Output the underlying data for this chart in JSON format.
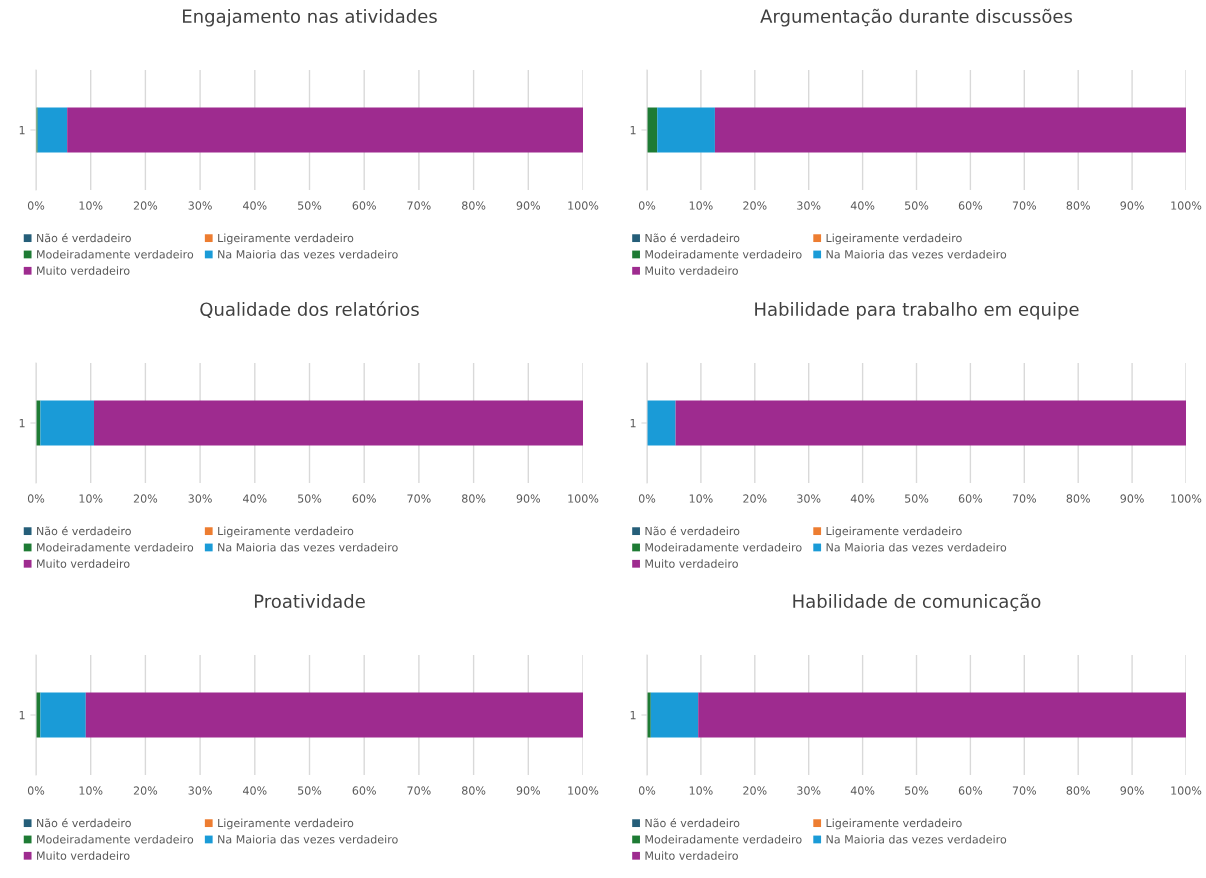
{
  "chart_data": [
    {
      "type": "bar",
      "title": "Engajamento nas atividades",
      "orientation": "horizontal",
      "stacked": true,
      "categories": [
        "1"
      ],
      "xlim": [
        0,
        100
      ],
      "xticks": [
        {
          "value": 0,
          "label": "0%"
        },
        {
          "value": 10,
          "label": "10%"
        },
        {
          "value": 20,
          "label": "20%"
        },
        {
          "value": 30,
          "label": "30%"
        },
        {
          "value": 40,
          "label": "40%"
        },
        {
          "value": 50,
          "label": "50%"
        },
        {
          "value": 60,
          "label": "60%"
        },
        {
          "value": 70,
          "label": "70%"
        },
        {
          "value": 80,
          "label": "80%"
        },
        {
          "value": 90,
          "label": "90%"
        },
        {
          "value": 100,
          "label": "100%"
        }
      ],
      "grid": "x",
      "legend": "bottom",
      "series": [
        {
          "name": "Não é verdadeiro",
          "color": "#255e79",
          "values": [
            0
          ]
        },
        {
          "name": "Ligeiramente verdadeiro",
          "color": "#ed7d31",
          "values": [
            0
          ]
        },
        {
          "name": "Modeiradamente verdadeiro",
          "color": "#1e7b34",
          "values": [
            0.3
          ]
        },
        {
          "name": "Na Maioria das vezes verdadeiro",
          "color": "#1a9bd7",
          "values": [
            5.4
          ]
        },
        {
          "name": "Muito verdadeiro",
          "color": "#9e2b8f",
          "values": [
            94.3
          ]
        }
      ]
    },
    {
      "type": "bar",
      "title": "Argumentação durante discussões",
      "orientation": "horizontal",
      "stacked": true,
      "categories": [
        "1"
      ],
      "xlim": [
        0,
        100
      ],
      "xticks": [
        {
          "value": 0,
          "label": "0%"
        },
        {
          "value": 10,
          "label": "10%"
        },
        {
          "value": 20,
          "label": "20%"
        },
        {
          "value": 30,
          "label": "30%"
        },
        {
          "value": 40,
          "label": "40%"
        },
        {
          "value": 50,
          "label": "50%"
        },
        {
          "value": 60,
          "label": "60%"
        },
        {
          "value": 70,
          "label": "70%"
        },
        {
          "value": 80,
          "label": "80%"
        },
        {
          "value": 90,
          "label": "90%"
        },
        {
          "value": 100,
          "label": "100%"
        }
      ],
      "grid": "x",
      "legend": "bottom",
      "series": [
        {
          "name": "Não é verdadeiro",
          "color": "#255e79",
          "values": [
            0
          ]
        },
        {
          "name": "Ligeiramente verdadeiro",
          "color": "#ed7d31",
          "values": [
            0
          ]
        },
        {
          "name": "Modeiradamente verdadeiro",
          "color": "#1e7b34",
          "values": [
            1.9
          ]
        },
        {
          "name": "Na Maioria das vezes verdadeiro",
          "color": "#1a9bd7",
          "values": [
            10.7
          ]
        },
        {
          "name": "Muito verdadeiro",
          "color": "#9e2b8f",
          "values": [
            87.4
          ]
        }
      ]
    },
    {
      "type": "bar",
      "title": "Qualidade dos relatórios",
      "orientation": "horizontal",
      "stacked": true,
      "categories": [
        "1"
      ],
      "xlim": [
        0,
        100
      ],
      "xticks": [
        {
          "value": 0,
          "label": "0%"
        },
        {
          "value": 10,
          "label": "10%"
        },
        {
          "value": 20,
          "label": "20%"
        },
        {
          "value": 30,
          "label": "30%"
        },
        {
          "value": 40,
          "label": "40%"
        },
        {
          "value": 50,
          "label": "50%"
        },
        {
          "value": 60,
          "label": "60%"
        },
        {
          "value": 70,
          "label": "70%"
        },
        {
          "value": 80,
          "label": "80%"
        },
        {
          "value": 90,
          "label": "90%"
        },
        {
          "value": 100,
          "label": "100%"
        }
      ],
      "grid": "x",
      "legend": "bottom",
      "series": [
        {
          "name": "Não é verdadeiro",
          "color": "#255e79",
          "values": [
            0
          ]
        },
        {
          "name": "Ligeiramente verdadeiro",
          "color": "#ed7d31",
          "values": [
            0
          ]
        },
        {
          "name": "Modeiradamente verdadeiro",
          "color": "#1e7b34",
          "values": [
            0.8
          ]
        },
        {
          "name": "Na Maioria das vezes verdadeiro",
          "color": "#1a9bd7",
          "values": [
            9.8
          ]
        },
        {
          "name": "Muito verdadeiro",
          "color": "#9e2b8f",
          "values": [
            89.4
          ]
        }
      ]
    },
    {
      "type": "bar",
      "title": "Habilidade para trabalho em equipe",
      "orientation": "horizontal",
      "stacked": true,
      "categories": [
        "1"
      ],
      "xlim": [
        0,
        100
      ],
      "xticks": [
        {
          "value": 0,
          "label": "0%"
        },
        {
          "value": 10,
          "label": "10%"
        },
        {
          "value": 20,
          "label": "20%"
        },
        {
          "value": 30,
          "label": "30%"
        },
        {
          "value": 40,
          "label": "40%"
        },
        {
          "value": 50,
          "label": "50%"
        },
        {
          "value": 60,
          "label": "60%"
        },
        {
          "value": 70,
          "label": "70%"
        },
        {
          "value": 80,
          "label": "80%"
        },
        {
          "value": 90,
          "label": "90%"
        },
        {
          "value": 100,
          "label": "100%"
        }
      ],
      "grid": "x",
      "legend": "bottom",
      "series": [
        {
          "name": "Não é verdadeiro",
          "color": "#255e79",
          "values": [
            0
          ]
        },
        {
          "name": "Ligeiramente verdadeiro",
          "color": "#ed7d31",
          "values": [
            0
          ]
        },
        {
          "name": "Modeiradamente verdadeiro",
          "color": "#1e7b34",
          "values": [
            0
          ]
        },
        {
          "name": "Na Maioria das vezes verdadeiro",
          "color": "#1a9bd7",
          "values": [
            5.3
          ]
        },
        {
          "name": "Muito verdadeiro",
          "color": "#9e2b8f",
          "values": [
            94.7
          ]
        }
      ]
    },
    {
      "type": "bar",
      "title": "Proatividade",
      "orientation": "horizontal",
      "stacked": true,
      "categories": [
        "1"
      ],
      "xlim": [
        0,
        100
      ],
      "xticks": [
        {
          "value": 0,
          "label": "0%"
        },
        {
          "value": 10,
          "label": "10%"
        },
        {
          "value": 20,
          "label": "20%"
        },
        {
          "value": 30,
          "label": "30%"
        },
        {
          "value": 40,
          "label": "40%"
        },
        {
          "value": 50,
          "label": "50%"
        },
        {
          "value": 60,
          "label": "60%"
        },
        {
          "value": 70,
          "label": "70%"
        },
        {
          "value": 80,
          "label": "80%"
        },
        {
          "value": 90,
          "label": "90%"
        },
        {
          "value": 100,
          "label": "100%"
        }
      ],
      "grid": "x",
      "legend": "bottom",
      "series": [
        {
          "name": "Não é verdadeiro",
          "color": "#255e79",
          "values": [
            0
          ]
        },
        {
          "name": "Ligeiramente verdadeiro",
          "color": "#ed7d31",
          "values": [
            0
          ]
        },
        {
          "name": "Modeiradamente verdadeiro",
          "color": "#1e7b34",
          "values": [
            0.8
          ]
        },
        {
          "name": "Na Maioria das vezes verdadeiro",
          "color": "#1a9bd7",
          "values": [
            8.3
          ]
        },
        {
          "name": "Muito verdadeiro",
          "color": "#9e2b8f",
          "values": [
            90.9
          ]
        }
      ]
    },
    {
      "type": "bar",
      "title": "Habilidade de comunicação",
      "orientation": "horizontal",
      "stacked": true,
      "categories": [
        "1"
      ],
      "xlim": [
        0,
        100
      ],
      "xticks": [
        {
          "value": 0,
          "label": "0%"
        },
        {
          "value": 10,
          "label": "10%"
        },
        {
          "value": 20,
          "label": "20%"
        },
        {
          "value": 30,
          "label": "30%"
        },
        {
          "value": 40,
          "label": "40%"
        },
        {
          "value": 50,
          "label": "50%"
        },
        {
          "value": 60,
          "label": "60%"
        },
        {
          "value": 70,
          "label": "70%"
        },
        {
          "value": 80,
          "label": "80%"
        },
        {
          "value": 90,
          "label": "90%"
        },
        {
          "value": 100,
          "label": "100%"
        }
      ],
      "grid": "x",
      "legend": "bottom",
      "series": [
        {
          "name": "Não é verdadeiro",
          "color": "#255e79",
          "values": [
            0
          ]
        },
        {
          "name": "Ligeiramente verdadeiro",
          "color": "#ed7d31",
          "values": [
            0
          ]
        },
        {
          "name": "Modeiradamente verdadeiro",
          "color": "#1e7b34",
          "values": [
            0.7
          ]
        },
        {
          "name": "Na Maioria das vezes verdadeiro",
          "color": "#1a9bd7",
          "values": [
            8.8
          ]
        },
        {
          "name": "Muito verdadeiro",
          "color": "#9e2b8f",
          "values": [
            90.5
          ]
        }
      ]
    }
  ]
}
